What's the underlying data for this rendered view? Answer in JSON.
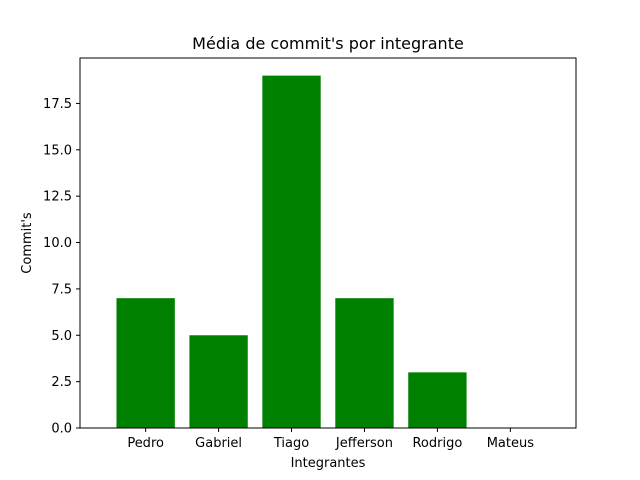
{
  "chart_data": {
    "type": "bar",
    "title": "Média de commit's por integrante",
    "xlabel": "Integrantes",
    "ylabel": "Commit's",
    "categories": [
      "Pedro",
      "Gabriel",
      "Tiago",
      "Jefferson",
      "Rodrigo",
      "Mateus"
    ],
    "values": [
      7,
      5,
      19,
      7,
      3,
      0
    ],
    "ylim": [
      0,
      19.95
    ],
    "yticks": [
      0.0,
      2.5,
      5.0,
      7.5,
      10.0,
      12.5,
      15.0,
      17.5
    ],
    "ytick_labels": [
      "0.0",
      "2.5",
      "5.0",
      "7.5",
      "10.0",
      "12.5",
      "15.0",
      "17.5"
    ],
    "bar_color": "#008000",
    "grid": false,
    "legend": "none"
  }
}
